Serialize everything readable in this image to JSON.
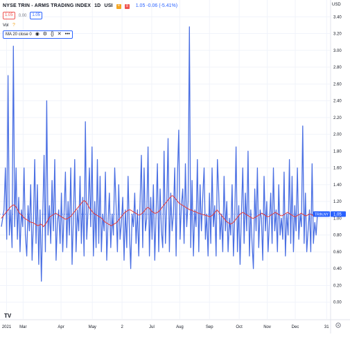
{
  "symbol": {
    "title": "NYSE TRIN - ARMS TRADING INDEX",
    "interval": "1D",
    "exchange": "USI",
    "quote": "1.05  -0.06 (-5.41%)",
    "sell_price": "1.05",
    "spread": "0.00",
    "buy_price": "1.05"
  },
  "volume_label": "Vol",
  "indicator": {
    "label": "MA 20 close 0"
  },
  "currency": "USD",
  "colors": {
    "series": "#4a6fe3",
    "ma": "#e53935",
    "accent": "#2962ff",
    "text": "#131722"
  },
  "logo_text": "TV",
  "chart_data": {
    "type": "line",
    "y_axis_labels": [
      "3.40",
      "3.20",
      "3.00",
      "2.80",
      "2.60",
      "2.40",
      "2.20",
      "2.00",
      "1.80",
      "1.60",
      "1.40",
      "1.20",
      "1.00",
      "0.80",
      "0.60",
      "0.40",
      "0.20",
      "0.00"
    ],
    "ylim": [
      -0.2,
      3.6
    ],
    "x_axis_labels": [
      "2021",
      "Mar",
      "Apr",
      "May",
      "2",
      "Jul",
      "Aug",
      "Sep",
      "Oct",
      "Nov",
      "Dec",
      "31"
    ],
    "x_axis_positions": [
      0.02,
      0.07,
      0.185,
      0.28,
      0.37,
      0.46,
      0.545,
      0.635,
      0.725,
      0.81,
      0.895,
      0.99
    ],
    "last_value": 1.05,
    "last_value_label": "1.05",
    "series_label": "TRIN.NY",
    "series": [
      {
        "name": "TRIN",
        "values": [
          0.9,
          1.0,
          1.1,
          1.6,
          0.75,
          2.7,
          0.8,
          1.1,
          0.65,
          3.05,
          0.9,
          1.6,
          0.75,
          1.25,
          0.6,
          1.1,
          0.9,
          1.6,
          0.8,
          0.55,
          1.15,
          0.85,
          1.4,
          0.5,
          0.95,
          1.7,
          0.7,
          1.4,
          0.45,
          1.1,
          0.25,
          1.0,
          1.75,
          0.6,
          2.4,
          0.8,
          1.15,
          0.7,
          1.45,
          0.85,
          1.7,
          0.5,
          0.95,
          1.1,
          0.7,
          1.3,
          0.6,
          1.05,
          1.55,
          0.65,
          1.2,
          0.8,
          1.6,
          0.45,
          1.0,
          1.7,
          0.6,
          1.1,
          0.85,
          1.5,
          0.7,
          1.25,
          0.55,
          2.15,
          0.75,
          1.1,
          1.6,
          0.9,
          1.85,
          0.55,
          1.2,
          0.65,
          1.7,
          0.7,
          1.5,
          0.6,
          1.05,
          0.85,
          1.55,
          0.5,
          0.95,
          1.3,
          0.65,
          1.05,
          0.8,
          1.6,
          1.15,
          0.6,
          1.4,
          0.75,
          0.95,
          1.25,
          0.5,
          1.1,
          0.65,
          1.5,
          0.85,
          0.4,
          1.05,
          0.9,
          1.3,
          0.7,
          1.1,
          0.55,
          1.2,
          1.75,
          0.65,
          1.6,
          0.85,
          1.0,
          1.85,
          0.55,
          1.25,
          0.75,
          1.4,
          0.5,
          1.05,
          1.65,
          0.6,
          1.35,
          0.85,
          0.65,
          1.8,
          0.7,
          1.15,
          1.95,
          0.6,
          1.3,
          0.85,
          1.05,
          1.6,
          0.55,
          1.5,
          2.05,
          0.75,
          1.15,
          1.35,
          0.7,
          1.65,
          0.9,
          1.2,
          3.28,
          0.65,
          1.45,
          0.55,
          1.1,
          0.9,
          1.7,
          0.6,
          1.4,
          0.85,
          1.25,
          1.6,
          0.75,
          1.05,
          0.55,
          1.3,
          0.7,
          1.6,
          0.9,
          1.15,
          0.55,
          1.7,
          1.3,
          0.75,
          1.05,
          0.6,
          1.5,
          0.85,
          1.2,
          0.6,
          1.0,
          0.8,
          1.4,
          0.55,
          1.0,
          1.85,
          0.6,
          1.15,
          0.45,
          1.05,
          1.6,
          0.7,
          1.3,
          0.85,
          1.8,
          0.55,
          1.1,
          0.7,
          0.4,
          1.35,
          0.85,
          1.6,
          0.65,
          1.1,
          1.0,
          0.5,
          1.5,
          0.85,
          1.2,
          0.6,
          0.95,
          1.3,
          0.7,
          1.6,
          0.85,
          1.1,
          0.6,
          1.4,
          0.8,
          1.0,
          0.75,
          1.55,
          0.55,
          1.05,
          0.8,
          1.7,
          0.7,
          1.5,
          0.6,
          1.15,
          0.85,
          1.6,
          0.75,
          1.05,
          0.9,
          2.1,
          0.7,
          1.3,
          0.6,
          0.85,
          1.1,
          0.6,
          1.65,
          0.7,
          0.95,
          0.8,
          1.05
        ]
      },
      {
        "name": "MA 20",
        "values": [
          1.0,
          1.02,
          1.04,
          1.06,
          1.08,
          1.1,
          1.12,
          1.14,
          1.15,
          1.16,
          1.15,
          1.13,
          1.1,
          1.07,
          1.05,
          1.04,
          1.02,
          1.0,
          0.99,
          0.98,
          0.97,
          0.96,
          0.95,
          0.95,
          0.94,
          0.93,
          0.92,
          0.91,
          0.92,
          0.93,
          0.92,
          0.9,
          0.92,
          0.94,
          0.97,
          1.0,
          1.02,
          1.03,
          1.04,
          1.05,
          1.06,
          1.05,
          1.04,
          1.03,
          1.02,
          1.01,
          1.0,
          0.99,
          0.99,
          1.0,
          1.01,
          1.02,
          1.04,
          1.06,
          1.08,
          1.1,
          1.12,
          1.14,
          1.16,
          1.18,
          1.2,
          1.21,
          1.2,
          1.18,
          1.15,
          1.12,
          1.1,
          1.08,
          1.06,
          1.05,
          1.04,
          1.03,
          1.02,
          1.01,
          1.0,
          0.98,
          0.96,
          0.95,
          0.94,
          0.93,
          0.92,
          0.91,
          0.92,
          0.93,
          0.94,
          0.95,
          0.97,
          0.99,
          1.01,
          1.03,
          1.05,
          1.07,
          1.08,
          1.09,
          1.1,
          1.1,
          1.09,
          1.08,
          1.07,
          1.06,
          1.05,
          1.04,
          1.04,
          1.05,
          1.06,
          1.08,
          1.1,
          1.12,
          1.13,
          1.12,
          1.1,
          1.08,
          1.07,
          1.06,
          1.06,
          1.07,
          1.08,
          1.1,
          1.12,
          1.14,
          1.16,
          1.18,
          1.2,
          1.22,
          1.24,
          1.26,
          1.27,
          1.26,
          1.24,
          1.22,
          1.2,
          1.18,
          1.17,
          1.16,
          1.15,
          1.14,
          1.13,
          1.12,
          1.11,
          1.1,
          1.1,
          1.09,
          1.08,
          1.08,
          1.07,
          1.06,
          1.06,
          1.05,
          1.05,
          1.04,
          1.04,
          1.03,
          1.03,
          1.02,
          1.02,
          1.03,
          1.04,
          1.06,
          1.08,
          1.1,
          1.08,
          1.06,
          1.04,
          1.02,
          1.0,
          0.98,
          0.96,
          0.95,
          0.94,
          0.93,
          0.94,
          0.95,
          0.97,
          0.99,
          1.01,
          1.03,
          1.05,
          1.06,
          1.07,
          1.06,
          1.05,
          1.04,
          1.03,
          1.02,
          1.01,
          1.0,
          1.0,
          1.01,
          1.02,
          1.03,
          1.04,
          1.05,
          1.06,
          1.05,
          1.04,
          1.03,
          1.02,
          1.02,
          1.03,
          1.04,
          1.05,
          1.06,
          1.07,
          1.06,
          1.05,
          1.04,
          1.03,
          1.03,
          1.04,
          1.05,
          1.06,
          1.07,
          1.06,
          1.05,
          1.04,
          1.03,
          1.02,
          1.02,
          1.03,
          1.04,
          1.05,
          1.06,
          1.05,
          1.04,
          1.03,
          1.03,
          1.04,
          1.05,
          1.05,
          1.04,
          1.03,
          1.04,
          1.05,
          1.05
        ]
      }
    ]
  }
}
